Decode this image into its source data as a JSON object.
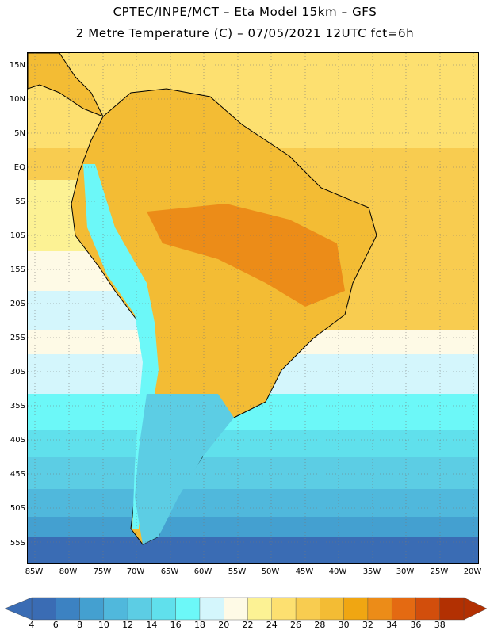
{
  "header": {
    "line1": "CPTEC/INPE/MCT –  Eta Model 15km – GFS",
    "line2": "2 Metre Temperature (C) – 07/05/2021 12UTC fct=6h"
  },
  "axes": {
    "lat_labels": [
      "15N",
      "10N",
      "5N",
      "EQ",
      "5S",
      "10S",
      "15S",
      "20S",
      "25S",
      "30S",
      "35S",
      "40S",
      "45S",
      "50S",
      "55S"
    ],
    "lon_labels": [
      "85W",
      "80W",
      "75W",
      "70W",
      "65W",
      "60W",
      "55W",
      "50W",
      "45W",
      "40W",
      "35W",
      "30W",
      "25W",
      "20W"
    ]
  },
  "colorbar": {
    "labels": [
      "4",
      "6",
      "8",
      "10",
      "12",
      "14",
      "16",
      "18",
      "20",
      "22",
      "24",
      "26",
      "28",
      "30",
      "32",
      "34",
      "36",
      "38"
    ],
    "colors": [
      "#3a6cb4",
      "#3c82c2",
      "#44a0d0",
      "#50b8dc",
      "#5ccde4",
      "#60e0ec",
      "#6cf8f8",
      "#d4f6fc",
      "#fefae6",
      "#fcf294",
      "#fde070",
      "#f8cc50",
      "#f3bc34",
      "#f0a612",
      "#ec8c18",
      "#e46a12",
      "#d24e0c",
      "#b23002"
    ]
  }
}
